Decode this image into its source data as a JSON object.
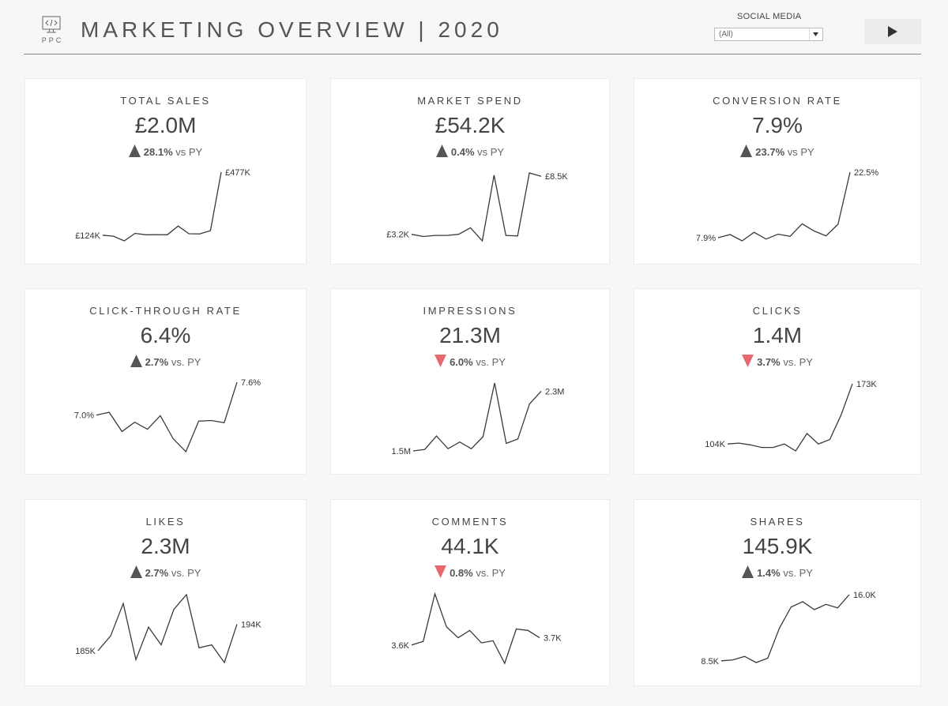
{
  "header": {
    "title": "MARKETING OVERVIEW | 2020",
    "logo_text": "PPC",
    "filter": {
      "label": "SOCIAL MEDIA",
      "selected": "(All)"
    },
    "play_icon": "play-icon"
  },
  "colors": {
    "up": "#555555",
    "down": "#e8686e",
    "line": "#3a3a3a"
  },
  "kpis": [
    {
      "id": "total-sales",
      "label": "TOTAL SALES",
      "value": "£2.0M",
      "direction": "up",
      "delta": "28.1%",
      "compare": "vs PY",
      "start_label": "£124K",
      "end_label": "£477K",
      "series": [
        124,
        118,
        92,
        134,
        126,
        127,
        126,
        175,
        132,
        131,
        149,
        477
      ]
    },
    {
      "id": "market-spend",
      "label": "MARKET SPEND",
      "value": "£54.2K",
      "direction": "up",
      "delta": "0.4%",
      "compare": "vs PY",
      "start_label": "£3.2K",
      "end_label": "£8.5K",
      "series": [
        3.2,
        3.0,
        3.1,
        3.1,
        3.2,
        3.8,
        2.6,
        8.6,
        3.1,
        3.05,
        8.8,
        8.5
      ]
    },
    {
      "id": "conversion-rate",
      "label": "CONVERSION RATE",
      "value": "7.9%",
      "direction": "up",
      "delta": "23.7%",
      "compare": "vs PY",
      "start_label": "7.9%",
      "end_label": "22.5%",
      "series": [
        7.9,
        8.6,
        7.2,
        9.1,
        7.6,
        8.7,
        8.2,
        11.0,
        9.4,
        8.3,
        10.9,
        22.5
      ]
    },
    {
      "id": "click-through-rate",
      "label": "CLICK-THROUGH RATE",
      "value": "6.4%",
      "direction": "up",
      "delta": "2.7%",
      "compare": "vs. PY",
      "start_label": "7.0%",
      "end_label": "7.6%",
      "series": [
        7.0,
        7.05,
        6.7,
        6.87,
        6.74,
        6.99,
        6.57,
        6.33,
        6.89,
        6.9,
        6.86,
        7.6
      ]
    },
    {
      "id": "impressions",
      "label": "IMPRESSIONS",
      "value": "21.3M",
      "direction": "down",
      "delta": "6.0%",
      "compare": "vs. PY",
      "start_label": "1.5M",
      "end_label": "2.3M",
      "series": [
        1.5,
        1.52,
        1.7,
        1.53,
        1.62,
        1.53,
        1.69,
        2.41,
        1.6,
        1.66,
        2.13,
        2.3
      ]
    },
    {
      "id": "clicks",
      "label": "CLICKS",
      "value": "1.4M",
      "direction": "down",
      "delta": "3.7%",
      "compare": "vs. PY",
      "start_label": "104K",
      "end_label": "173K",
      "series": [
        104,
        105,
        103,
        100,
        100,
        104,
        96,
        116,
        104,
        109,
        137,
        173
      ]
    },
    {
      "id": "likes",
      "label": "LIKES",
      "value": "2.3M",
      "direction": "up",
      "delta": "2.7%",
      "compare": "vs. PY",
      "start_label": "185K",
      "end_label": "194K",
      "series": [
        185,
        190,
        201,
        182,
        193,
        187,
        199,
        204,
        186,
        187,
        181,
        194
      ]
    },
    {
      "id": "comments",
      "label": "COMMENTS",
      "value": "44.1K",
      "direction": "down",
      "delta": "0.8%",
      "compare": "vs. PY",
      "start_label": "3.6K",
      "end_label": "3.7K",
      "series": [
        3.6,
        3.65,
        4.3,
        3.85,
        3.7,
        3.8,
        3.63,
        3.66,
        3.35,
        3.82,
        3.8,
        3.7
      ]
    },
    {
      "id": "shares",
      "label": "SHARES",
      "value": "145.9K",
      "direction": "up",
      "delta": "1.4%",
      "compare": "vs. PY",
      "start_label": "8.5K",
      "end_label": "16.0K",
      "series": [
        8.5,
        8.6,
        9.0,
        8.3,
        8.8,
        12.2,
        14.6,
        15.2,
        14.3,
        14.9,
        14.5,
        16.0
      ]
    }
  ]
}
